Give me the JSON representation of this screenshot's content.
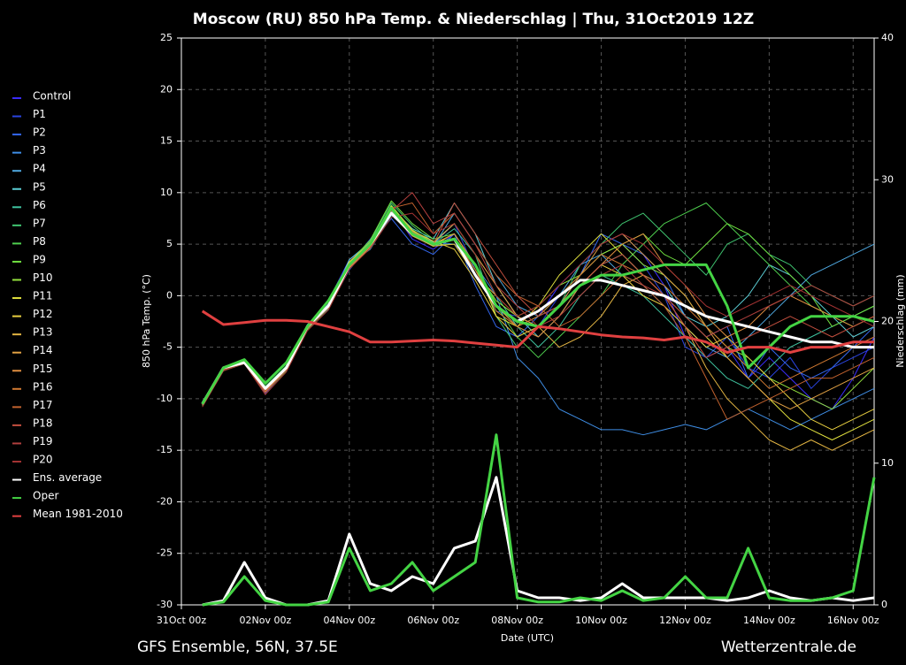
{
  "chart_data": {
    "type": "line",
    "title": "Moscow  (RU)  850 hPa Temp. & Niederschlag | Thu, 31Oct2019 12Z",
    "ylabel": "850 hPa Temp. (°C)",
    "y2label": "Niederschlag (mm)",
    "xlabel": "Date (UTC)",
    "source_left": "GFS Ensemble, 56N, 37.5E",
    "source_right": "Wetterzentrale.de",
    "legend": "left",
    "grid": true,
    "ylim": [
      -30,
      25
    ],
    "yticks": [
      -30,
      -25,
      -20,
      -15,
      -10,
      -5,
      0,
      5,
      10,
      15,
      20,
      25
    ],
    "y2lim": [
      0,
      40
    ],
    "y2ticks": [
      0,
      10,
      20,
      30,
      40
    ],
    "categories": [
      "31Oct 00z",
      null,
      null,
      null,
      "02Nov 00z",
      null,
      null,
      null,
      "04Nov 00z",
      null,
      null,
      null,
      "06Nov 00z",
      null,
      null,
      null,
      "08Nov 00z",
      null,
      null,
      null,
      "10Nov 00z",
      null,
      null,
      null,
      "12Nov 00z",
      null,
      null,
      null,
      "14Nov 00z",
      null,
      null,
      null,
      "16Nov 00z",
      null
    ],
    "series": [
      {
        "name": "Control",
        "color": "#3a2cff",
        "values": [
          null,
          -10.5,
          -7.2,
          -6.3,
          -9.2,
          -7,
          -3,
          -0.5,
          3.5,
          5,
          8.5,
          5.5,
          4.5,
          6,
          3,
          -1,
          -3,
          -2,
          1,
          3,
          5,
          6,
          4,
          1,
          -4,
          -6,
          -5,
          -8,
          -6,
          -8,
          -10,
          -11,
          -8,
          -4
        ]
      },
      {
        "name": "P1",
        "color": "#2a44e0",
        "values": [
          null,
          -10.6,
          -7,
          -6.5,
          -9.5,
          -7.2,
          -3.2,
          -1,
          3,
          5.5,
          8,
          6,
          5,
          7,
          2.5,
          -1.5,
          -2,
          -3,
          0,
          2,
          4,
          5,
          3,
          0,
          -5,
          -6,
          -4,
          -7,
          -8,
          -6,
          -9,
          -7,
          -6,
          -5
        ]
      },
      {
        "name": "P2",
        "color": "#3468f0",
        "values": [
          null,
          -10.4,
          -6.9,
          -6.2,
          -9,
          -7,
          -3,
          -1.2,
          2.5,
          5,
          7.5,
          5,
          4,
          6,
          1,
          -3,
          -4,
          -2,
          -1,
          2,
          6,
          5,
          4,
          2,
          -2,
          -4,
          -3,
          -8,
          -5,
          -7,
          -8,
          -7,
          -5,
          -3
        ]
      },
      {
        "name": "P3",
        "color": "#3f8ee6",
        "values": [
          null,
          -10.5,
          -7.1,
          -6.4,
          -9.3,
          -6.8,
          -2.8,
          -0.8,
          3.2,
          4.8,
          8.2,
          6.2,
          5.2,
          5,
          3,
          0,
          -6,
          -8,
          -11,
          -12,
          -13,
          -13,
          -13.5,
          -13,
          -12.5,
          -13,
          -12,
          -11,
          -12,
          -13,
          -12,
          -11,
          -10,
          -9
        ]
      },
      {
        "name": "P4",
        "color": "#4fa8e0",
        "values": [
          null,
          -10.5,
          -7,
          -6.6,
          -9.1,
          -7.1,
          -3.1,
          -1.1,
          3,
          4.5,
          7.8,
          6,
          4.8,
          8,
          5,
          2,
          -1,
          -2,
          0,
          3,
          4,
          2,
          1,
          -1,
          -3,
          -5,
          -6,
          -4,
          -2,
          0,
          2,
          3,
          4,
          5
        ]
      },
      {
        "name": "P5",
        "color": "#5ccfd6",
        "values": [
          null,
          -10.3,
          -7,
          -6.3,
          -9,
          -7,
          -3,
          -1,
          3.5,
          5.2,
          8.5,
          6.5,
          5.5,
          9,
          6,
          1,
          -2,
          -4,
          -2,
          1,
          3,
          4,
          2,
          1,
          -2,
          -3,
          -2,
          0,
          3,
          2,
          0,
          -2,
          -4,
          -3
        ]
      },
      {
        "name": "P6",
        "color": "#3fc4a0",
        "values": [
          null,
          -10.6,
          -7.2,
          -6.5,
          -9.2,
          -7.2,
          -3.2,
          -1.3,
          2.8,
          4.8,
          8,
          5.8,
          5,
          6.5,
          4,
          0,
          -3,
          -5,
          -3,
          0,
          2,
          1,
          0,
          -2,
          -4,
          -6,
          -8,
          -9,
          -7,
          -5,
          -4,
          -3,
          -2,
          -1
        ]
      },
      {
        "name": "P7",
        "color": "#3fc470",
        "values": [
          null,
          -10.5,
          -7,
          -6.2,
          -8.8,
          -6.8,
          -2.9,
          -0.9,
          3.1,
          5.3,
          9,
          6.8,
          5.2,
          7,
          4,
          -2,
          -5,
          -3,
          -1,
          3,
          5,
          7,
          8,
          6,
          4,
          2,
          5,
          6,
          4,
          3,
          1,
          0,
          -1,
          0
        ]
      },
      {
        "name": "P8",
        "color": "#4fd04f",
        "values": [
          null,
          -10.7,
          -7.3,
          -6.6,
          -9.4,
          -7.3,
          -3.3,
          -1.2,
          2.9,
          5,
          8.8,
          6.3,
          4.9,
          5,
          2,
          -1,
          -4,
          -6,
          -4,
          -2,
          0,
          3,
          5,
          7,
          8,
          9,
          7,
          5,
          3,
          1,
          -1,
          -2,
          -3,
          -2
        ]
      },
      {
        "name": "P9",
        "color": "#70e040",
        "values": [
          null,
          -10.4,
          -7,
          -6.3,
          -9,
          -7,
          -3,
          -1,
          3.2,
          5.4,
          9.2,
          7,
          5.5,
          6,
          3,
          -1,
          -3,
          -2,
          0,
          2,
          4,
          5,
          6,
          4,
          3,
          5,
          7,
          6,
          4,
          2,
          0,
          -3,
          -2,
          -1
        ]
      },
      {
        "name": "P10",
        "color": "#94e23e",
        "values": [
          null,
          -10.5,
          -7.1,
          -6.5,
          -9.2,
          -7.1,
          -3.1,
          -1,
          3,
          5.1,
          8.6,
          6.4,
          5.1,
          5.5,
          2.5,
          -0.5,
          -2,
          -1,
          1,
          2,
          4,
          5,
          3,
          2,
          0,
          -3,
          -5,
          -6,
          -8,
          -9,
          -10,
          -11,
          -9,
          -7
        ]
      },
      {
        "name": "P11",
        "color": "#e2e23e",
        "values": [
          null,
          -10.6,
          -7,
          -6.4,
          -9.1,
          -7,
          -3,
          -1.1,
          3.1,
          4.9,
          8.3,
          6,
          5,
          6,
          3,
          -2,
          -3,
          -1,
          2,
          4,
          6,
          4,
          2,
          0,
          -2,
          -4,
          -6,
          -8,
          -10,
          -12,
          -13,
          -14,
          -13,
          -12
        ]
      },
      {
        "name": "P12",
        "color": "#e8cf40",
        "values": [
          null,
          -10.5,
          -7,
          -6.3,
          -9,
          -7,
          -2.9,
          -0.9,
          3.3,
          5.1,
          8.7,
          6.3,
          5.3,
          4.5,
          1.5,
          -2,
          -4,
          -3,
          -1,
          1,
          3,
          2,
          0,
          -1,
          -3,
          -5,
          -4,
          -6,
          -8,
          -10,
          -12,
          -13,
          -12,
          -11
        ]
      },
      {
        "name": "P13",
        "color": "#e2b442",
        "values": [
          null,
          -10.5,
          -7.2,
          -6.5,
          -9.3,
          -7.2,
          -3.2,
          -1.2,
          2.7,
          4.7,
          7.9,
          5.8,
          4.8,
          5,
          2,
          0,
          -2,
          -3,
          -5,
          -4,
          -2,
          1,
          2,
          0,
          -3,
          -7,
          -10,
          -12,
          -14,
          -15,
          -14,
          -15,
          -14,
          -13
        ]
      },
      {
        "name": "P14",
        "color": "#e2a244",
        "values": [
          null,
          -10.4,
          -6.9,
          -6.2,
          -8.9,
          -6.9,
          -2.9,
          -0.9,
          3.1,
          5.2,
          8.4,
          6.1,
          5.1,
          7,
          4,
          1,
          -2,
          -3,
          -1,
          2,
          5,
          6,
          4,
          2,
          0,
          -3,
          -6,
          -8,
          -10,
          -11,
          -10,
          -9,
          -8,
          -7
        ]
      },
      {
        "name": "P15",
        "color": "#e08e40",
        "values": [
          null,
          -10.6,
          -7.1,
          -6.5,
          -9.2,
          -7.1,
          -3.1,
          -1.1,
          2.9,
          4.9,
          8.1,
          6,
          4.9,
          6,
          3,
          -1,
          -3,
          -4,
          -2,
          1,
          3,
          5,
          6,
          3,
          1,
          -2,
          -4,
          -3,
          -1,
          0,
          -1,
          -2,
          -3,
          -2
        ]
      },
      {
        "name": "P16",
        "color": "#d27a32",
        "values": [
          null,
          -10.5,
          -7,
          -6.4,
          -9.1,
          -7,
          -3,
          -1,
          3,
          5,
          8.5,
          6.2,
          5,
          5.5,
          2.5,
          -1.5,
          -3,
          -2,
          0,
          2,
          4,
          3,
          2,
          1,
          -1,
          -3,
          -5,
          -7,
          -9,
          -8,
          -7,
          -6,
          -5,
          -4
        ]
      },
      {
        "name": "P17",
        "color": "#c2622e",
        "values": [
          null,
          -10.5,
          -7,
          -6.3,
          -9,
          -7,
          -3,
          -1,
          3,
          5,
          8.5,
          9,
          6,
          8,
          5,
          2,
          0,
          -1,
          -3,
          -2,
          0,
          2,
          1,
          -1,
          -4,
          -8,
          -12,
          -11,
          -10,
          -9,
          -8,
          -8,
          -7,
          -6
        ]
      },
      {
        "name": "P18",
        "color": "#c24e3e",
        "values": [
          null,
          -10.6,
          -7.2,
          -6.5,
          -9.4,
          -7.2,
          -3.2,
          -1.2,
          2.8,
          4.8,
          8,
          6,
          5,
          9,
          6,
          3,
          0,
          -2,
          -1,
          1,
          3,
          4,
          2,
          0,
          -3,
          -6,
          -5,
          -4,
          -3,
          -2,
          -3,
          -4,
          -3,
          -2
        ]
      },
      {
        "name": "P19",
        "color": "#b2403e",
        "values": [
          null,
          -10.5,
          -7,
          -6.4,
          -9.2,
          -7,
          -3,
          -1,
          3,
          5,
          8.2,
          10,
          7,
          8,
          5,
          1,
          -1,
          -3,
          -2,
          0,
          2,
          3,
          1,
          0,
          -2,
          -4,
          -3,
          -2,
          -1,
          0,
          1,
          0,
          -1,
          0
        ]
      },
      {
        "name": "P20",
        "color": "#a23232",
        "values": [
          null,
          -10.8,
          -7.3,
          -6.6,
          -9.6,
          -7.4,
          -3.4,
          -1.4,
          2.6,
          4.6,
          7.6,
          8,
          6,
          7,
          4,
          0,
          -2,
          -1,
          1,
          3,
          5,
          6,
          5,
          3,
          1,
          -1,
          -2,
          -1,
          0,
          1,
          0,
          -1,
          -2,
          -3
        ]
      },
      {
        "name": "Ens. average",
        "color": "#ffffff",
        "width": 3,
        "values": [
          null,
          -10.5,
          -7,
          -6.5,
          -9,
          -7,
          -3,
          -1,
          3,
          5,
          8,
          6,
          5,
          5.5,
          2,
          -1,
          -2.5,
          -1.5,
          0,
          1.5,
          1.5,
          1,
          0.5,
          0,
          -1,
          -2,
          -2.5,
          -3,
          -3.5,
          -4,
          -4.5,
          -4.5,
          -5,
          -5
        ],
        "precip": [
          null,
          0,
          0.3,
          3,
          0.5,
          0,
          0,
          0.3,
          5,
          1.5,
          1,
          2,
          1.5,
          4,
          4.5,
          9,
          1,
          0.5,
          0.5,
          0.3,
          0.5,
          1.5,
          0.5,
          0.5,
          0.5,
          0.5,
          0.3,
          0.5,
          1,
          0.5,
          0.3,
          0.5,
          0.3,
          0.5
        ]
      },
      {
        "name": "Oper",
        "color": "#44d444",
        "width": 3,
        "values": [
          null,
          -10.5,
          -7,
          -6.2,
          -8.5,
          -6.5,
          -3,
          -0.5,
          3,
          5,
          8.5,
          6,
          5,
          5.5,
          3,
          -1,
          -2.5,
          -3,
          -1,
          1,
          2,
          2,
          2.5,
          3,
          3,
          3,
          -1,
          -7,
          -5,
          -3,
          -2,
          -2,
          -2,
          -2.5
        ],
        "precip": [
          null,
          0,
          0.2,
          2,
          0.3,
          0,
          0,
          0.2,
          4,
          1,
          1.5,
          3,
          1,
          2,
          3,
          12,
          0.5,
          0.2,
          0.2,
          0.5,
          0.3,
          1,
          0.3,
          0.5,
          2,
          0.5,
          0.5,
          4,
          0.5,
          0.3,
          0.3,
          0.5,
          1,
          9
        ]
      },
      {
        "name": "Mean 1981-2010",
        "color": "#e04040",
        "width": 3,
        "values": [
          null,
          -1.5,
          -2.8,
          -2.6,
          -2.4,
          -2.4,
          -2.5,
          -3,
          -3.5,
          -4.5,
          -4.5,
          -4.4,
          -4.3,
          -4.4,
          -4.6,
          -4.8,
          -5,
          -3,
          -3.2,
          -3.5,
          -3.8,
          -4,
          -4.1,
          -4.3,
          -4,
          -4.5,
          -5.5,
          -5,
          -5,
          -5.5,
          -5,
          -5,
          -4.5,
          -4.5
        ]
      }
    ]
  }
}
